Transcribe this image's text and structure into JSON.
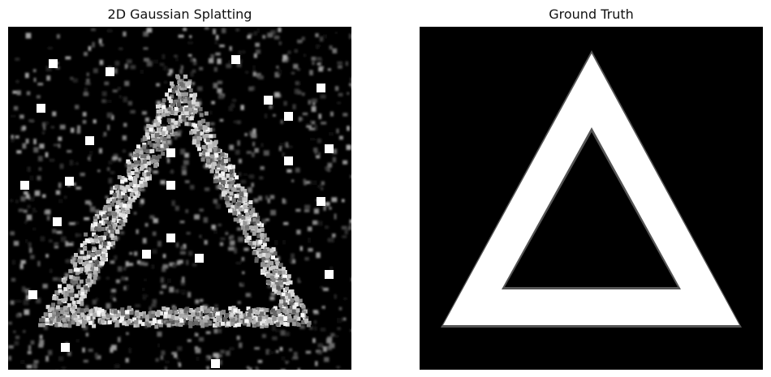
{
  "figure": {
    "panels": [
      {
        "title": "2D Gaussian Splatting"
      },
      {
        "title": "Ground Truth"
      }
    ],
    "colors": {
      "background": "#000000",
      "foreground": "#ffffff",
      "edge": "#555555"
    }
  }
}
